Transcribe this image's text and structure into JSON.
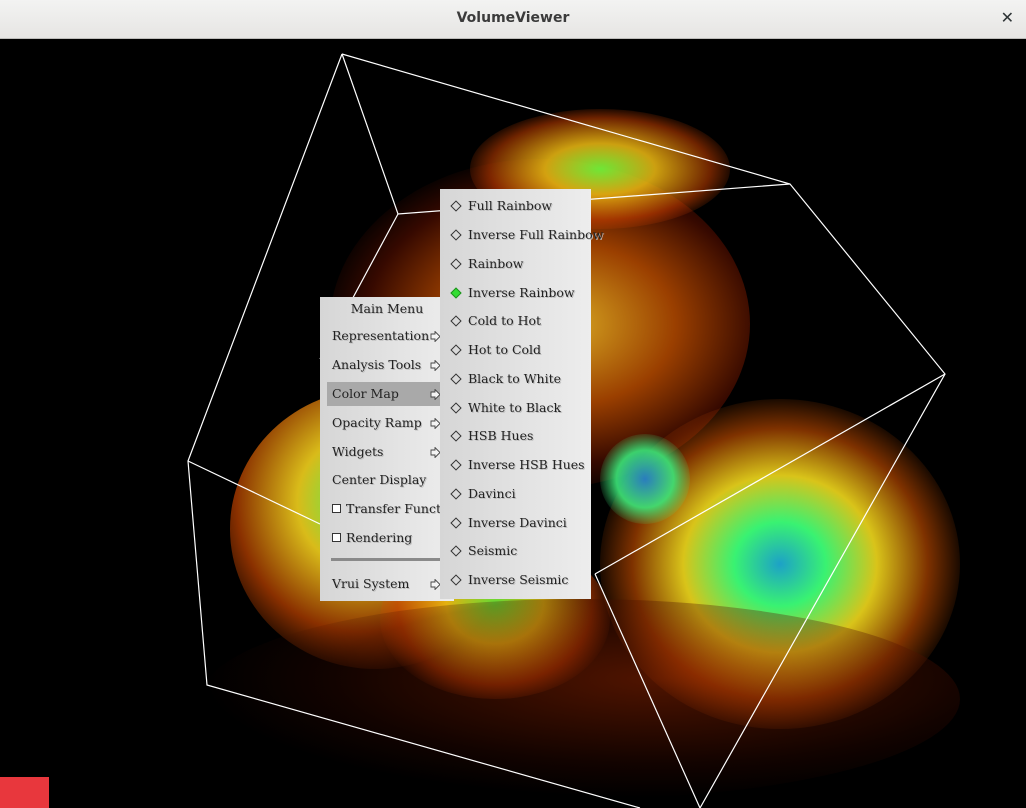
{
  "window": {
    "title": "VolumeViewer",
    "close_glyph": "✕"
  },
  "main_menu": {
    "title": "Main Menu",
    "items": [
      {
        "label": "Representation",
        "type": "submenu"
      },
      {
        "label": "Analysis Tools",
        "type": "submenu"
      },
      {
        "label": "Color Map",
        "type": "submenu",
        "selected": true
      },
      {
        "label": "Opacity Ramp",
        "type": "submenu"
      },
      {
        "label": "Widgets",
        "type": "submenu"
      },
      {
        "label": "Center Display",
        "type": "button"
      },
      {
        "label": "Transfer Functions",
        "type": "toggle",
        "checked": false
      },
      {
        "label": "Rendering",
        "type": "toggle",
        "checked": false
      },
      {
        "label": "Vrui System",
        "type": "submenu"
      }
    ]
  },
  "color_map_menu": {
    "items": [
      {
        "label": "Full Rainbow",
        "selected": false
      },
      {
        "label": "Inverse Full Rainbow",
        "selected": false
      },
      {
        "label": "Rainbow",
        "selected": false
      },
      {
        "label": "Inverse Rainbow",
        "selected": true
      },
      {
        "label": "Cold to Hot",
        "selected": false
      },
      {
        "label": "Hot to Cold",
        "selected": false
      },
      {
        "label": "Black to White",
        "selected": false
      },
      {
        "label": "White to Black",
        "selected": false
      },
      {
        "label": "HSB Hues",
        "selected": false
      },
      {
        "label": "Inverse HSB Hues",
        "selected": false
      },
      {
        "label": "Davinci",
        "selected": false
      },
      {
        "label": "Inverse Davinci",
        "selected": false
      },
      {
        "label": "Seismic",
        "selected": false
      },
      {
        "label": "Inverse Seismic",
        "selected": false
      }
    ]
  },
  "colors": {
    "selected_radio": "#33dd33",
    "highlight": "#a9a9a9",
    "status_square": "#e8373d"
  },
  "icons": {
    "submenu_arrow": "submenu-arrow-icon",
    "close": "close-icon"
  }
}
